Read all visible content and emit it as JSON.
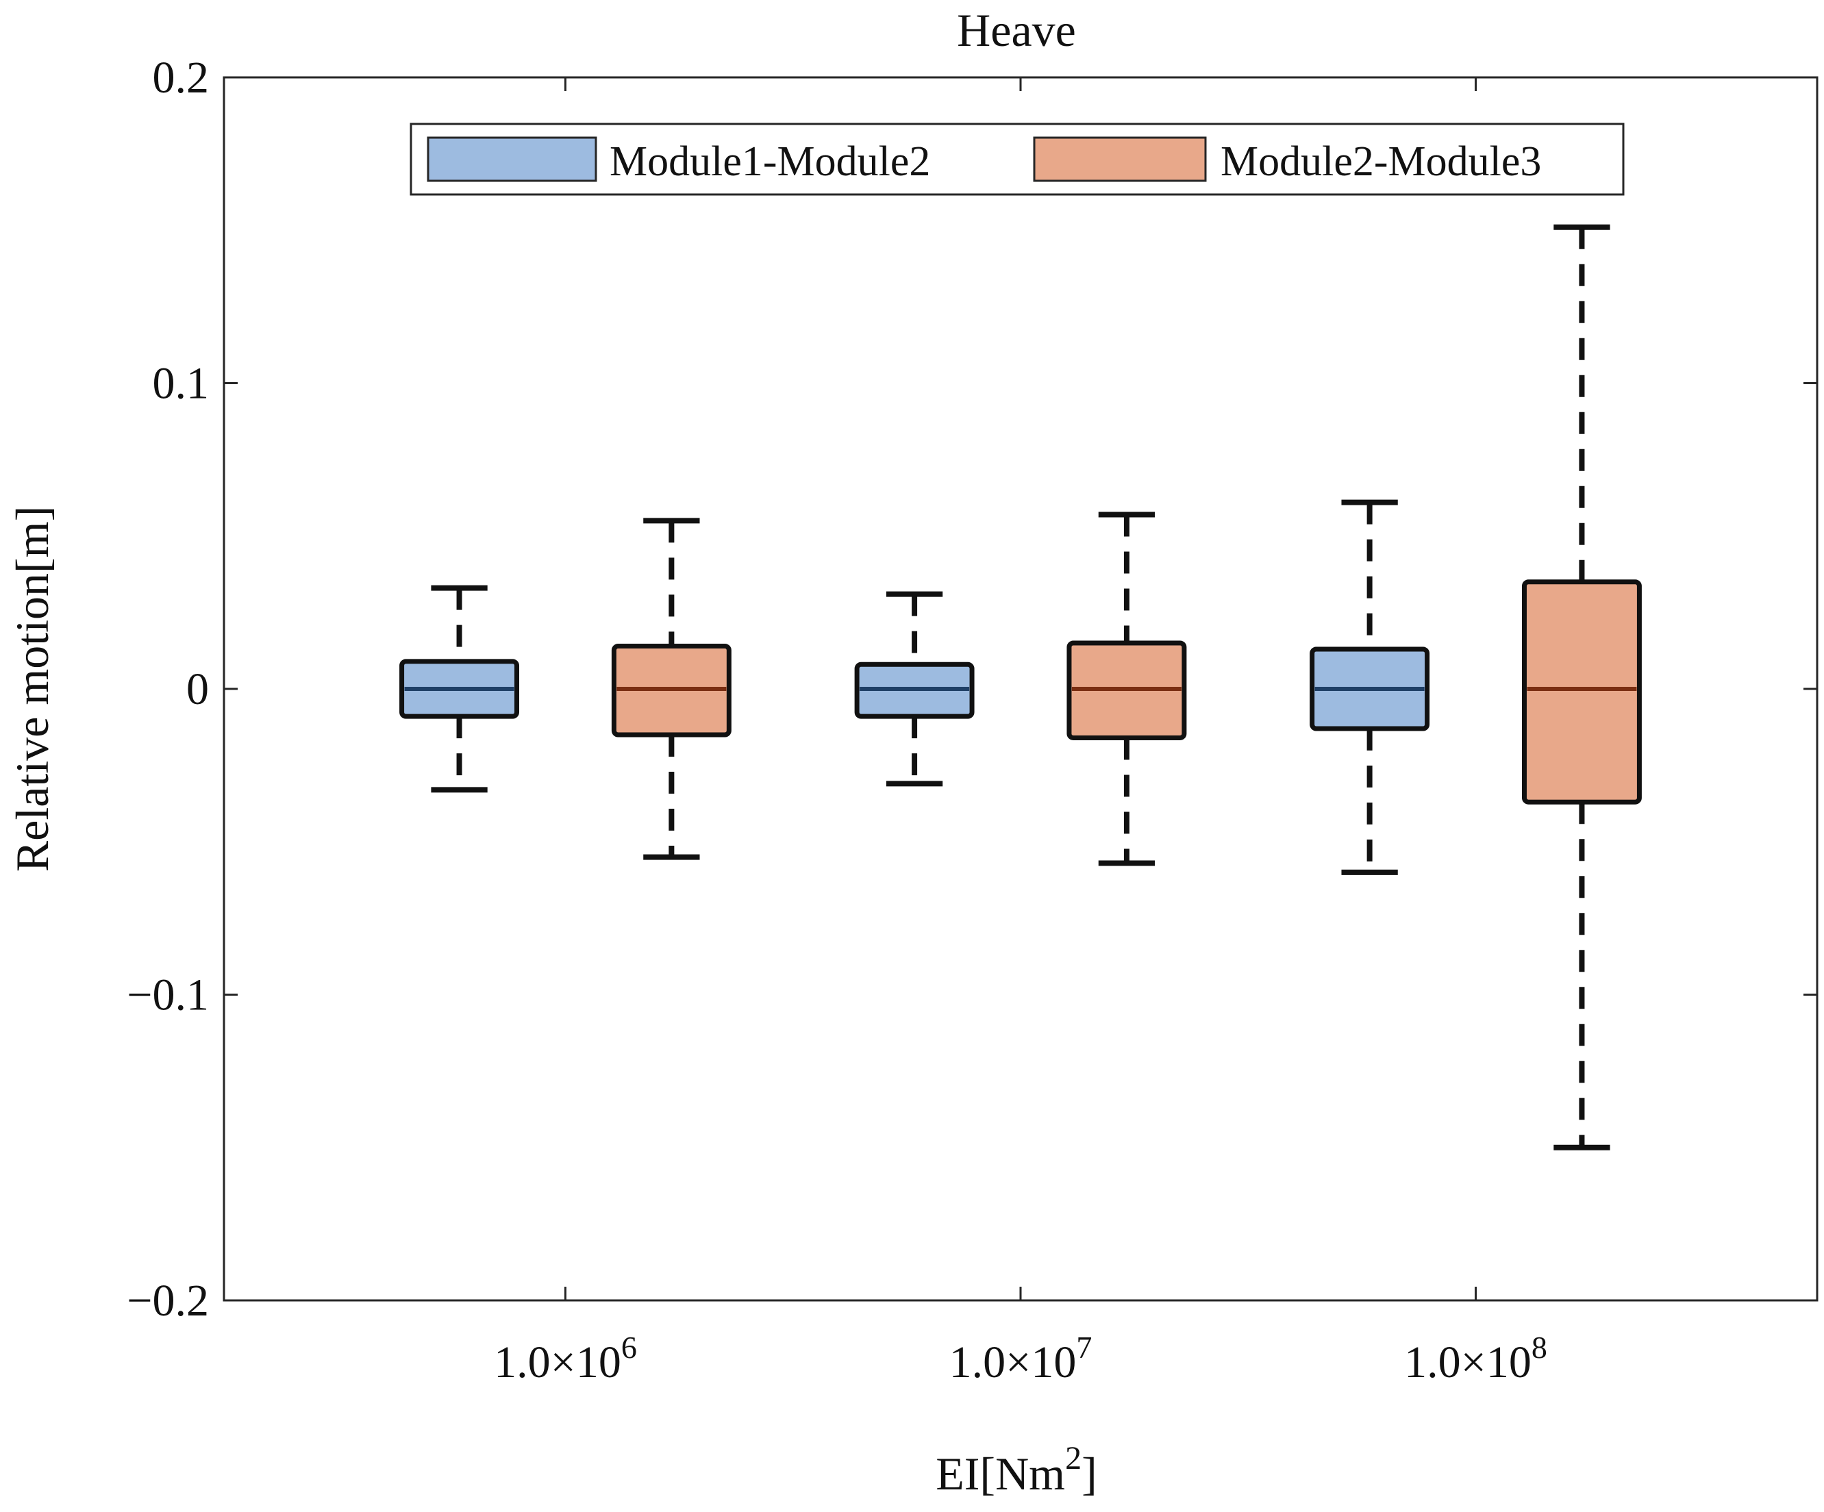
{
  "chart_data": {
    "type": "box",
    "title": "Heave",
    "xlabel": "EI[Nm",
    "xlabel_sup": "2",
    "xlabel_end": "]",
    "ylabel": "Relative motion[m]",
    "ylim": [
      -0.2,
      0.2
    ],
    "yticks": [
      -0.2,
      -0.1,
      0,
      0.1,
      0.2
    ],
    "ytick_labels": [
      "−0.2",
      "−0.1",
      "0",
      "0.1",
      "0.2"
    ],
    "grid": false,
    "legend_position": "top-center",
    "categories": [
      {
        "base": "1.0×10",
        "exp": "6"
      },
      {
        "base": "1.0×10",
        "exp": "7"
      },
      {
        "base": "1.0×10",
        "exp": "8"
      }
    ],
    "series": [
      {
        "name": "Module1-Module2",
        "color": "#9dbbe0",
        "median_color": "#1f3f66",
        "boxes": [
          {
            "whisker_low": -0.033,
            "q1": -0.009,
            "median": 0.0,
            "q3": 0.009,
            "whisker_high": 0.033
          },
          {
            "whisker_low": -0.031,
            "q1": -0.009,
            "median": 0.0,
            "q3": 0.008,
            "whisker_high": 0.031
          },
          {
            "whisker_low": -0.06,
            "q1": -0.013,
            "median": 0.0,
            "q3": 0.013,
            "whisker_high": 0.061
          }
        ]
      },
      {
        "name": "Module2-Module3",
        "color": "#e8a88a",
        "median_color": "#7a2e12",
        "boxes": [
          {
            "whisker_low": -0.055,
            "q1": -0.015,
            "median": 0.0,
            "q3": 0.014,
            "whisker_high": 0.055
          },
          {
            "whisker_low": -0.057,
            "q1": -0.016,
            "median": 0.0,
            "q3": 0.015,
            "whisker_high": 0.057
          },
          {
            "whisker_low": -0.15,
            "q1": -0.037,
            "median": 0.0,
            "q3": 0.035,
            "whisker_high": 0.151
          }
        ]
      }
    ]
  }
}
